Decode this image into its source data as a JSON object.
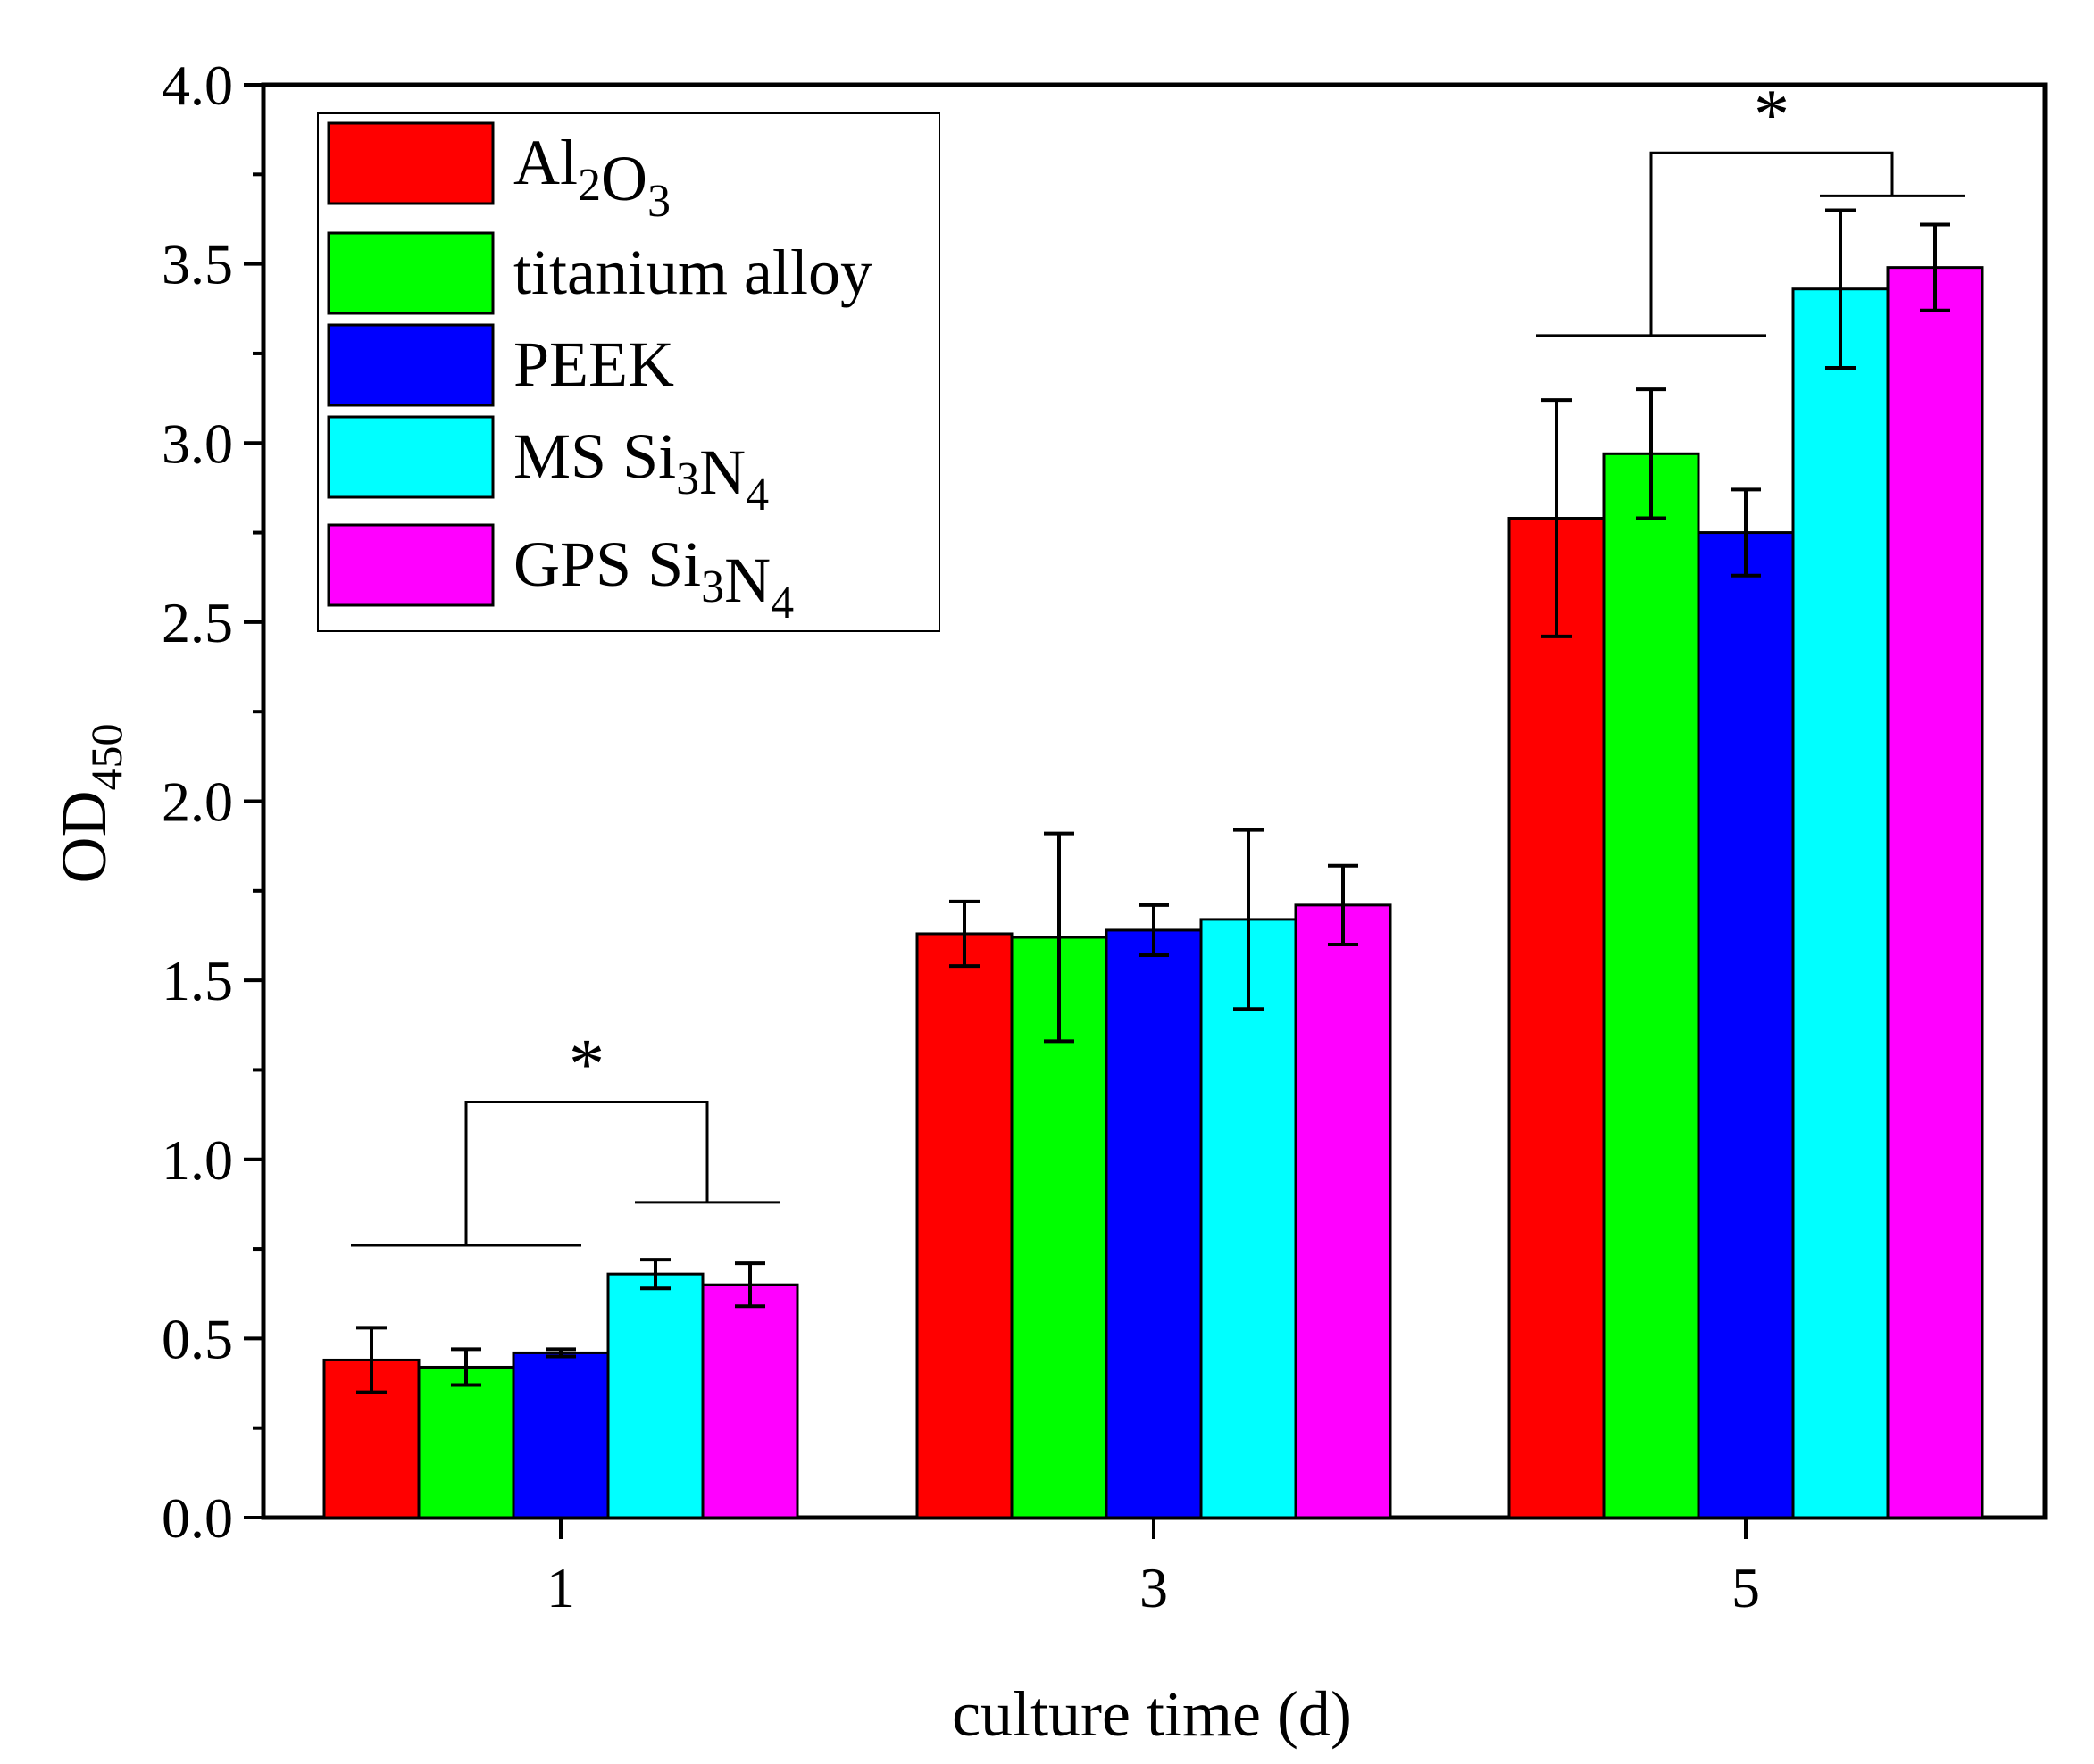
{
  "chart_data": {
    "type": "bar",
    "categories": [
      "1",
      "3",
      "5"
    ],
    "xlabel": "culture time (d)",
    "ylabel": {
      "main": "OD",
      "sub": "450"
    },
    "ylim": [
      0,
      4.0
    ],
    "yticks": [
      "0.0",
      "0.5",
      "1.0",
      "1.5",
      "2.0",
      "2.5",
      "3.0",
      "3.5",
      "4.0"
    ],
    "ytick_values": [
      0,
      0.5,
      1.0,
      1.5,
      2.0,
      2.5,
      3.0,
      3.5,
      4.0
    ],
    "legend_position": "top-left",
    "series": [
      {
        "name": "Al2O3",
        "color": "#ff0000",
        "values": [
          0.44,
          1.63,
          2.79
        ],
        "errors": [
          0.09,
          0.09,
          0.33
        ]
      },
      {
        "name": "titanium alloy",
        "color": "#00ff00",
        "values": [
          0.42,
          1.62,
          2.97
        ],
        "errors": [
          0.05,
          0.29,
          0.18
        ]
      },
      {
        "name": "PEEK",
        "color": "#0000ff",
        "values": [
          0.46,
          1.64,
          2.75
        ],
        "errors": [
          0.01,
          0.07,
          0.12
        ]
      },
      {
        "name": "MS Si3N4",
        "color": "#00ffff",
        "values": [
          0.68,
          1.67,
          3.43
        ],
        "errors": [
          0.04,
          0.25,
          0.22
        ]
      },
      {
        "name": "GPS Si3N4",
        "color": "#ff00ff",
        "values": [
          0.65,
          1.71,
          3.49
        ],
        "errors": [
          0.06,
          0.11,
          0.12
        ]
      }
    ],
    "legend_labels": [
      {
        "parts": [
          {
            "t": "Al"
          },
          {
            "t": "2",
            "sub": true
          },
          {
            "t": "O"
          },
          {
            "t": "3",
            "sub": true
          }
        ]
      },
      {
        "parts": [
          {
            "t": "titanium alloy"
          }
        ]
      },
      {
        "parts": [
          {
            "t": "PEEK"
          }
        ]
      },
      {
        "parts": [
          {
            "t": "MS Si"
          },
          {
            "t": "3",
            "sub": true
          },
          {
            "t": "N"
          },
          {
            "t": "4",
            "sub": true
          }
        ]
      },
      {
        "parts": [
          {
            "t": "GPS Si"
          },
          {
            "t": "3",
            "sub": true
          },
          {
            "t": "N"
          },
          {
            "t": "4",
            "sub": true
          }
        ]
      }
    ],
    "annotations": [
      {
        "category": "1",
        "label": "*",
        "left_group": [
          0,
          2
        ],
        "right_group": [
          3,
          4
        ],
        "left_line_y": 0.76,
        "right_line_y": 0.88,
        "top_y": 1.16
      },
      {
        "category": "5",
        "label": "*",
        "left_group": [
          0,
          2
        ],
        "right_group": [
          3,
          4
        ],
        "left_line_y": 3.3,
        "right_line_y": 3.69,
        "top_y": 3.81
      }
    ]
  }
}
